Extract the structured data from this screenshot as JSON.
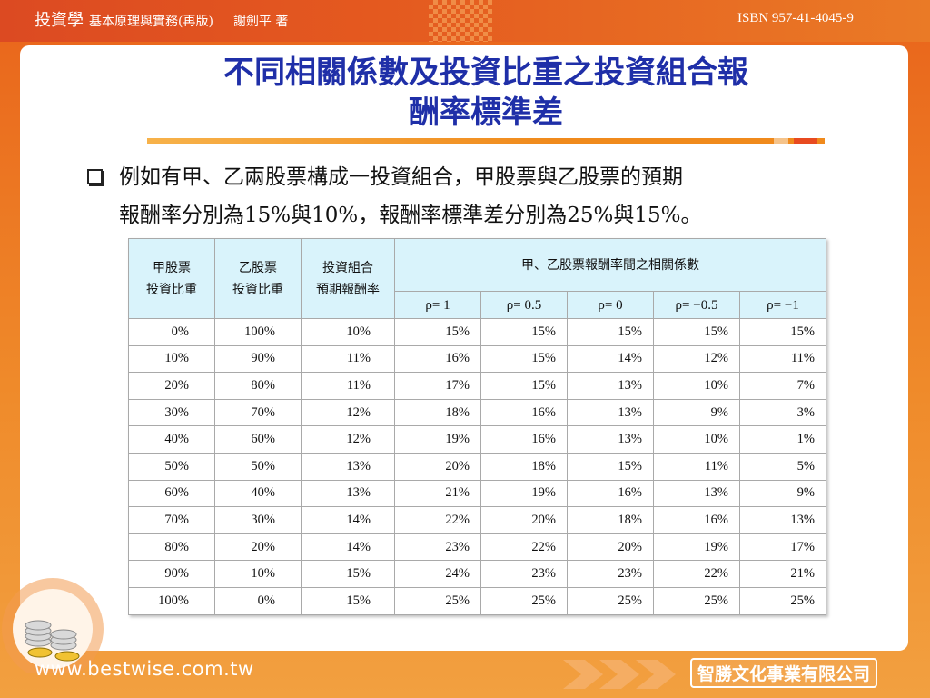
{
  "header": {
    "logo_text": "投資學",
    "book_subtitle": "基本原理與實務(再版)",
    "author": "謝劍平 著",
    "isbn": "ISBN 957-41-4045-9"
  },
  "slide": {
    "title_line1": "不同相關係數及投資比重之投資組合報",
    "title_line2": "酬率標準差",
    "bullet_line1": "例如有甲、乙兩股票構成一投資組合，甲股票與乙股票的預期",
    "bullet_line2": "報酬率分別為15%與10%，報酬率標準差分別為25%與15%。"
  },
  "table": {
    "head": {
      "col1_line1": "甲股票",
      "col1_line2": "投資比重",
      "col2_line1": "乙股票",
      "col2_line2": "投資比重",
      "col3_line1": "投資組合",
      "col3_line2": "預期報酬率",
      "group": "甲、乙股票報酬率間之相關係數",
      "rho": [
        "ρ= 1",
        "ρ= 0.5",
        "ρ= 0",
        "ρ= −0.5",
        "ρ= −1"
      ]
    },
    "rows": [
      [
        "0%",
        "100%",
        "10%",
        "15%",
        "15%",
        "15%",
        "15%",
        "15%"
      ],
      [
        "10%",
        "90%",
        "11%",
        "16%",
        "15%",
        "14%",
        "12%",
        "11%"
      ],
      [
        "20%",
        "80%",
        "11%",
        "17%",
        "15%",
        "13%",
        "10%",
        "7%"
      ],
      [
        "30%",
        "70%",
        "12%",
        "18%",
        "16%",
        "13%",
        "9%",
        "3%"
      ],
      [
        "40%",
        "60%",
        "12%",
        "19%",
        "16%",
        "13%",
        "10%",
        "1%"
      ],
      [
        "50%",
        "50%",
        "13%",
        "20%",
        "18%",
        "15%",
        "11%",
        "5%"
      ],
      [
        "60%",
        "40%",
        "13%",
        "21%",
        "19%",
        "16%",
        "13%",
        "9%"
      ],
      [
        "70%",
        "30%",
        "14%",
        "22%",
        "20%",
        "18%",
        "16%",
        "13%"
      ],
      [
        "80%",
        "20%",
        "14%",
        "23%",
        "22%",
        "20%",
        "19%",
        "17%"
      ],
      [
        "90%",
        "10%",
        "15%",
        "24%",
        "23%",
        "23%",
        "22%",
        "21%"
      ],
      [
        "100%",
        "0%",
        "15%",
        "25%",
        "25%",
        "25%",
        "25%",
        "25%"
      ]
    ]
  },
  "footer": {
    "url": "www.bestwise.com.tw",
    "company": "智勝文化事業有限公司"
  },
  "colors": {
    "frame_orange": "#e9731c",
    "title_blue": "#1f2fa8",
    "table_header_bg": "#d9f3fb"
  },
  "icons": [
    "checkbox-bullet-icon",
    "coin-stack-icon",
    "arrow-chevrons-icon"
  ]
}
